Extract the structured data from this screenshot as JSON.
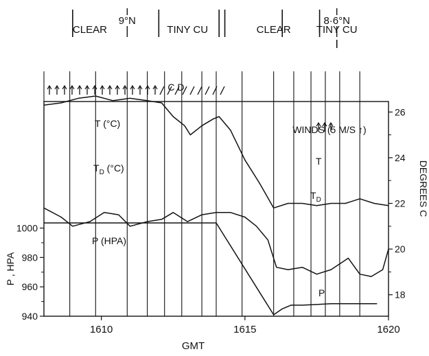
{
  "chart_data": {
    "type": "line",
    "xlabel": "GMT",
    "x_ticks": [
      "1610",
      "1615",
      "1620"
    ],
    "xlim": [
      1608,
      1620
    ],
    "left_axis": {
      "label": "P , HPA",
      "ticks": [
        "940",
        "960",
        "980",
        "1000"
      ],
      "ylim": [
        940,
        1008
      ]
    },
    "right_axis": {
      "label": "DEGREES C",
      "ticks": [
        "18",
        "20",
        "22",
        "24",
        "26"
      ],
      "ylim": [
        17.0,
        27.0
      ]
    },
    "header": {
      "lat_labels": [
        {
          "text": "9°N",
          "x": 1610.9
        },
        {
          "text": "8·6°N",
          "x": 1618.2
        }
      ],
      "sky_labels": [
        {
          "text": "CLEAR",
          "x": 1609.6
        },
        {
          "text": "TINY CU",
          "x": 1613.0
        },
        {
          "text": "CLEAR",
          "x": 1616.0
        },
        {
          "text": "TINY CU",
          "x": 1618.2
        }
      ],
      "separators": [
        1609.0,
        1612.0,
        1614.1,
        1614.3,
        1616.3,
        1617.6
      ],
      "tick_marks": [
        1610.9,
        1618.2
      ]
    },
    "wind_labels": {
      "text": "C D",
      "x": 1612.6
    },
    "winds_note": "WINDS (5 M/S ↑)",
    "vertical_lines": [
      1608.9,
      1609.8,
      1610.9,
      1611.6,
      1612.2,
      1612.8,
      1613.5,
      1614.0,
      1614.9,
      1616.0,
      1616.7,
      1617.3,
      1617.8,
      1618.3,
      1619.0
    ],
    "annotations": [
      {
        "text": "T (°C)",
        "x": 1609.8,
        "series": "T"
      },
      {
        "text": "T",
        "sub": "D",
        "suffix": " (°C)",
        "x": 1609.7,
        "series": "TD"
      },
      {
        "text": "P (HPA)",
        "x": 1609.9,
        "series": "P"
      },
      {
        "text": "T",
        "x": 1617.6,
        "series": "T_right"
      },
      {
        "text": "T",
        "sub": "D",
        "x": 1617.7,
        "series": "TD_right"
      },
      {
        "text": "P",
        "x": 1617.6,
        "series": "P_right"
      }
    ],
    "series": [
      {
        "name": "T",
        "axis": "right",
        "x": [
          1608.0,
          1608.6,
          1609.2,
          1609.8,
          1610.4,
          1611.0,
          1611.6,
          1612.1,
          1612.5,
          1612.9,
          1613.1,
          1613.5,
          1613.9,
          1614.1,
          1614.5,
          1615.0,
          1615.5,
          1616.0,
          1616.5,
          1617.0,
          1617.5,
          1618.0,
          1618.5,
          1619.0,
          1619.5,
          1620.0
        ],
        "values": [
          26.3,
          26.4,
          26.6,
          26.7,
          26.5,
          26.6,
          26.5,
          26.4,
          25.8,
          25.4,
          25.0,
          25.4,
          25.7,
          25.8,
          25.2,
          23.9,
          22.9,
          21.8,
          22.0,
          22.0,
          21.9,
          22.0,
          22.0,
          22.2,
          22.0,
          21.9
        ]
      },
      {
        "name": "TD",
        "axis": "right",
        "x": [
          1608.0,
          1608.6,
          1609.0,
          1609.6,
          1610.1,
          1610.6,
          1611.0,
          1611.6,
          1612.1,
          1612.5,
          1613.0,
          1613.5,
          1614.0,
          1614.5,
          1615.0,
          1615.4,
          1615.8,
          1616.1,
          1616.5,
          1617.0,
          1617.5,
          1618.0,
          1618.6,
          1619.0,
          1619.4,
          1619.8,
          1620.0
        ],
        "values": [
          21.8,
          21.4,
          21.0,
          21.2,
          21.6,
          21.5,
          21.0,
          21.2,
          21.3,
          21.6,
          21.2,
          21.5,
          21.6,
          21.6,
          21.4,
          21.0,
          20.4,
          19.2,
          19.1,
          19.2,
          18.9,
          19.1,
          19.6,
          18.9,
          18.8,
          19.1,
          20.0
        ]
      },
      {
        "name": "P",
        "axis": "left",
        "x": [
          1608.0,
          1614.0,
          1616.0,
          1616.3,
          1616.6,
          1617.0,
          1617.5,
          1618.0,
          1619.0,
          1619.6
        ],
        "values": [
          1003.5,
          1003.5,
          941,
          945,
          947.5,
          947.5,
          948,
          948.5,
          948.5,
          948.5
        ]
      }
    ]
  }
}
